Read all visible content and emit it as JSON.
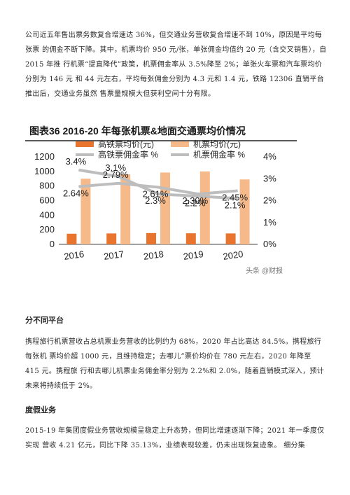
{
  "top_paragraph": "公司近五年售出票务数复合增速达 36%，但交通业务营收复合增速不到 10%，原因是平均每张票 的佣金不断下降。其中，机票均价 950 元/张，单张佣金均值约 20 元（含交叉销售），自 2015 年推 行机票“提直降代”政策，机票佣金率从 3.5%降至 2%；单张火车票和汽车票均价分别为 146 元 和 44 元左右，平均每张佣金分别为 4.3 元和 1.4 元，铁路 12306 直销平台推出后，交通业务虽然 售票量规模大但获利空间十分有限。",
  "chart_data": {
    "type": "bar",
    "title": "图表36   2016-20 年每张机票&地面交通票均价情况",
    "categories": [
      "2016",
      "2017",
      "2018",
      "2019",
      "2020"
    ],
    "left_axis": {
      "min": 0,
      "max": 1200,
      "ticks": [
        "0",
        "200",
        "400",
        "600",
        "800",
        "1000",
        "1200"
      ]
    },
    "right_axis": {
      "min": 0,
      "max": 4,
      "ticks": [
        "0%",
        "1%",
        "2%",
        "3%",
        "4%"
      ]
    },
    "series": [
      {
        "name": "高铁票均价(元)",
        "kind": "bar",
        "axis": "left",
        "color": "#e8742e",
        "values": [
          146,
          150,
          155,
          152,
          150
        ]
      },
      {
        "name": "机票均价(元)",
        "kind": "bar",
        "axis": "left",
        "color": "#f6b98a",
        "values": [
          900,
          960,
          985,
          1000,
          890
        ]
      },
      {
        "name": "高铁票佣金率 %",
        "kind": "line",
        "axis": "right",
        "color": "#bdbdbd",
        "values": [
          3.4,
          3.1,
          2.3,
          2.2,
          2.1
        ],
        "labels": [
          "3.4%",
          "3.1%",
          "2.3%",
          "2.2%",
          "2.1%"
        ]
      },
      {
        "name": "机票佣金率 %",
        "kind": "line",
        "axis": "right",
        "color": "#bdbdbd",
        "values": [
          2.64,
          2.79,
          2.61,
          2.3,
          2.45
        ],
        "labels": [
          "2.64%",
          "2.79%",
          "2.61%",
          "2.30%",
          "2.45%"
        ]
      }
    ],
    "watermark": "头条 @财报"
  },
  "section1": {
    "heading": "分不同平台",
    "body": "携程旅行机票营收占总机票业务营收的比例约为 68%，2020 年占比高达 84.5%。携程旅行每张机 票均价超 1000 元，且维持稳定；去哪儿”票价均价在 780 元左右，2020 年降至 415 元。携程旅 行和去哪儿机票业务佣金率分别为 2.2%和 2.0%，随着直销模式深入，预计未来将持续低于 2%。"
  },
  "section2": {
    "heading": "度假业务",
    "body": "2015-19 年集团度假业务营收规模呈稳定上升态势，但同比增速逐渐下降；2021 年一季度仅实现 营收 4.21 亿元，同比下降 35.13%，业绩表现较差，仍未出现恢复迹象。 细分集"
  }
}
